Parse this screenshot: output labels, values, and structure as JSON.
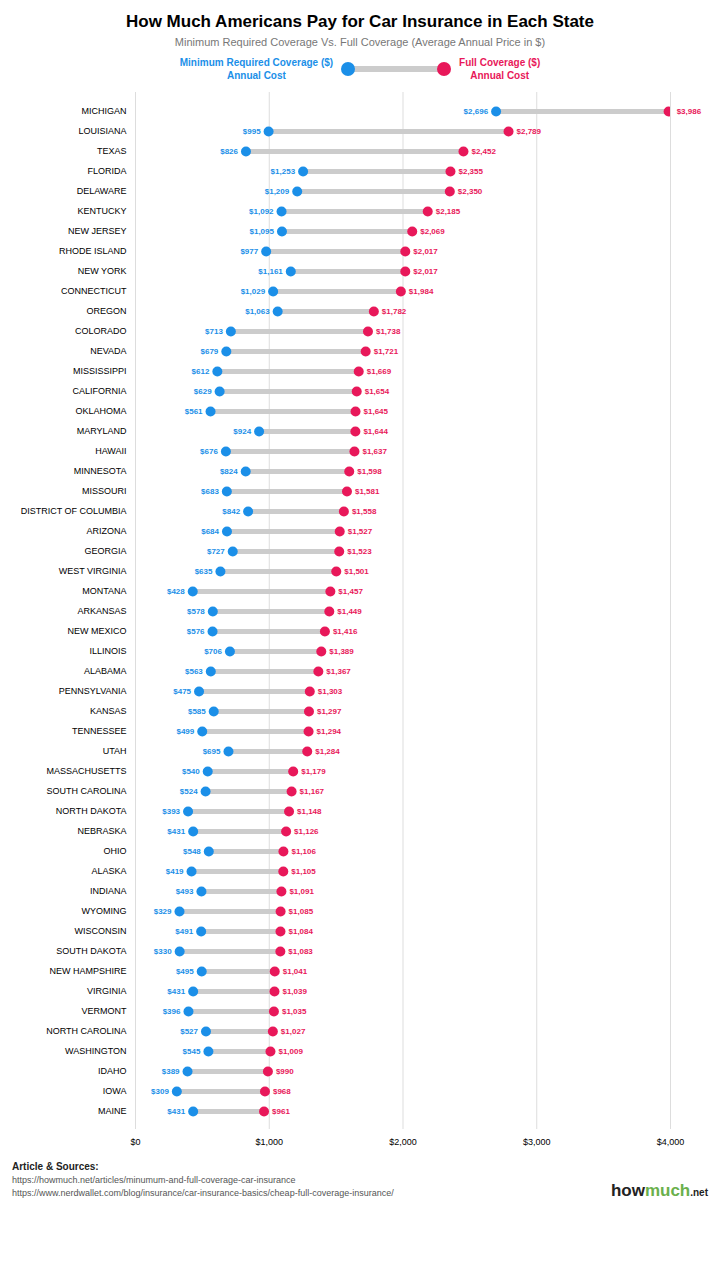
{
  "chart_data": {
    "type": "dumbbell",
    "title": "How Much Americans Pay for Car Insurance in Each State",
    "subtitle": "Minimum Required Coverage Vs. Full Coverage (Average Annual Price in $)",
    "orientation": "horizontal",
    "categories": [
      "MICHIGAN",
      "LOUISIANA",
      "TEXAS",
      "FLORIDA",
      "DELAWARE",
      "KENTUCKY",
      "NEW JERSEY",
      "RHODE ISLAND",
      "NEW YORK",
      "CONNECTICUT",
      "OREGON",
      "COLORADO",
      "NEVADA",
      "MISSISSIPPI",
      "CALIFORNIA",
      "OKLAHOMA",
      "MARYLAND",
      "HAWAII",
      "MINNESOTA",
      "MISSOURI",
      "DISTRICT OF COLUMBIA",
      "ARIZONA",
      "GEORGIA",
      "WEST VIRGINIA",
      "MONTANA",
      "ARKANSAS",
      "NEW MEXICO",
      "ILLINOIS",
      "ALABAMA",
      "PENNSYLVANIA",
      "KANSAS",
      "TENNESSEE",
      "UTAH",
      "MASSACHUSETTS",
      "SOUTH CAROLINA",
      "NORTH DAKOTA",
      "NEBRASKA",
      "OHIO",
      "ALASKA",
      "INDIANA",
      "WYOMING",
      "WISCONSIN",
      "SOUTH DAKOTA",
      "NEW HAMPSHIRE",
      "VIRGINIA",
      "VERMONT",
      "NORTH CAROLINA",
      "WASHINGTON",
      "IDAHO",
      "IOWA",
      "MAINE"
    ],
    "series": [
      {
        "name": "Minimum Required Coverage ($)\nAnnual Cost",
        "color": "#1B8FE8",
        "values": [
          2696,
          995,
          826,
          1253,
          1209,
          1092,
          1095,
          977,
          1161,
          1029,
          1063,
          713,
          679,
          612,
          629,
          561,
          924,
          676,
          824,
          683,
          842,
          684,
          727,
          635,
          428,
          578,
          576,
          706,
          563,
          475,
          585,
          499,
          695,
          540,
          524,
          393,
          431,
          548,
          419,
          493,
          329,
          491,
          330,
          495,
          431,
          396,
          527,
          545,
          389,
          309,
          431
        ],
        "value_labels": [
          "$2,696",
          "$995",
          "$826",
          "$1,253",
          "$1,209",
          "$1,092",
          "$1,095",
          "$977",
          "$1,161",
          "$1,029",
          "$1,063",
          "$713",
          "$679",
          "$612",
          "$629",
          "$561",
          "$924",
          "$676",
          "$824",
          "$683",
          "$842",
          "$684",
          "$727",
          "$635",
          "$428",
          "$578",
          "$576",
          "$706",
          "$563",
          "$475",
          "$585",
          "$499",
          "$695",
          "$540",
          "$524",
          "$393",
          "$431",
          "$548",
          "$419",
          "$493",
          "$329",
          "$491",
          "$330",
          "$495",
          "$431",
          "$396",
          "$527",
          "$545",
          "$389",
          "$309",
          "$431"
        ]
      },
      {
        "name": "Full Coverage ($)\nAnnual Cost",
        "color": "#E8185A",
        "values": [
          3986,
          2789,
          2452,
          2355,
          2350,
          2185,
          2069,
          2017,
          2017,
          1984,
          1782,
          1738,
          1721,
          1669,
          1654,
          1645,
          1644,
          1637,
          1598,
          1581,
          1558,
          1527,
          1523,
          1501,
          1457,
          1449,
          1416,
          1389,
          1367,
          1303,
          1297,
          1294,
          1284,
          1179,
          1167,
          1148,
          1126,
          1106,
          1105,
          1091,
          1085,
          1084,
          1083,
          1041,
          1039,
          1035,
          1027,
          1009,
          990,
          968,
          961
        ],
        "value_labels": [
          "$3,986",
          "$2,789",
          "$2,452",
          "$2,355",
          "$2,350",
          "$2,185",
          "$2,069",
          "$2,017",
          "$2,017",
          "$1,984",
          "$1,782",
          "$1,738",
          "$1,721",
          "$1,669",
          "$1,654",
          "$1,645",
          "$1,644",
          "$1,637",
          "$1,598",
          "$1,581",
          "$1,558",
          "$1,527",
          "$1,523",
          "$1,501",
          "$1,457",
          "$1,449",
          "$1,416",
          "$1,389",
          "$1,367",
          "$1,303",
          "$1,297",
          "$1,294",
          "$1,284",
          "$1,179",
          "$1,167",
          "$1,148",
          "$1,126",
          "$1,106",
          "$1,105",
          "$1,091",
          "$1,085",
          "$1,084",
          "$1,083",
          "$1,041",
          "$1,039",
          "$1,035",
          "$1,027",
          "$1,009",
          "$990",
          "$968",
          "$961"
        ]
      }
    ],
    "color": "#CCCCCC",
    "data_labels": true,
    "legend": "top",
    "grid": true,
    "xlim": [
      0,
      4000
    ],
    "xticks": [
      {
        "value": 0,
        "label": "$0"
      },
      {
        "value": 1000,
        "label": "$1,000"
      },
      {
        "value": 2000,
        "label": "$2,000"
      },
      {
        "value": 3000,
        "label": "$3,000"
      },
      {
        "value": 4000,
        "label": "$4,000"
      }
    ],
    "annotations": [
      {
        "text": "Article & Sources:"
      },
      {
        "text": "https://howmuch.net/articles/minumum-and-full-coverage-car-insurance"
      },
      {
        "text": "https://www.nerdwallet.com/blog/insurance/car-insurance-basics/cheap-full-coverage-insurance/"
      },
      {
        "text": "how",
        "color": "#222222"
      },
      {
        "text": "much",
        "color": "#6ab04c"
      },
      {
        "text": ".net",
        "color": "#222222"
      }
    ]
  }
}
